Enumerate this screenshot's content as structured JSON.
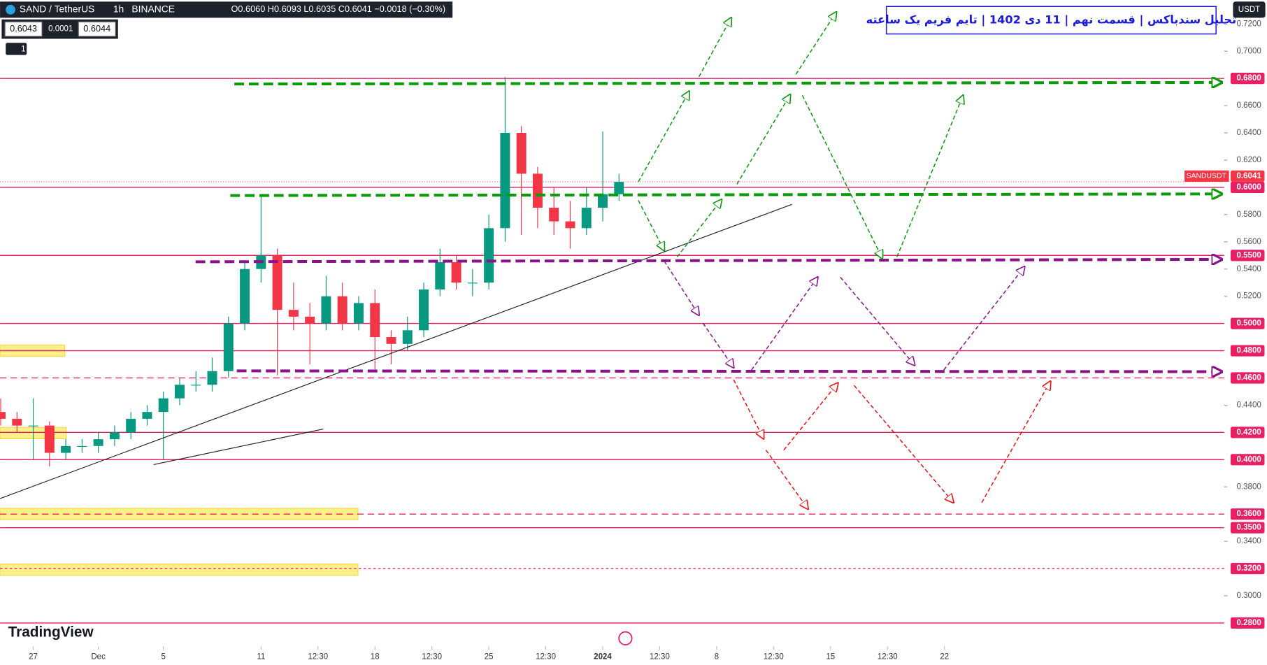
{
  "header": {
    "symbol": "SAND / TetherUS",
    "interval": "1h",
    "exchange": "BINANCE",
    "ohlc": "O0.6060 H0.6093 L0.6035 C0.6041 −0.0018 (−0.30%)",
    "bid": "0.6043",
    "spread": "0.0001",
    "ask": "0.6044",
    "indicators": "1"
  },
  "currency": "USDT",
  "brand": "TradingView",
  "chart_data": {
    "type": "candlestick",
    "title": "تحلیل سندباکس | قسمت نهم | 11 دی 1402 | تایم فریم یک ساعته",
    "x": [
      -2,
      -1,
      0,
      1,
      2,
      3,
      4,
      5,
      6,
      7,
      8,
      9,
      10,
      11,
      12,
      13,
      14,
      15,
      16,
      17,
      18,
      19,
      20,
      21,
      22,
      23,
      24,
      25,
      26,
      27,
      28,
      29,
      30,
      31,
      32,
      33,
      34,
      35,
      36
    ],
    "open": [
      0.435,
      0.43,
      0.425,
      0.425,
      0.405,
      0.41,
      0.41,
      0.415,
      0.42,
      0.43,
      0.435,
      0.445,
      0.455,
      0.455,
      0.465,
      0.5,
      0.54,
      0.55,
      0.51,
      0.505,
      0.5,
      0.52,
      0.5,
      0.515,
      0.49,
      0.485,
      0.495,
      0.525,
      0.545,
      0.53,
      0.53,
      0.57,
      0.64,
      0.61,
      0.585,
      0.575,
      0.57,
      0.585,
      0.595
    ],
    "high": [
      0.445,
      0.435,
      0.445,
      0.428,
      0.415,
      0.415,
      0.42,
      0.425,
      0.435,
      0.44,
      0.45,
      0.46,
      0.465,
      0.475,
      0.505,
      0.545,
      0.595,
      0.555,
      0.53,
      0.515,
      0.535,
      0.53,
      0.52,
      0.525,
      0.495,
      0.505,
      0.53,
      0.555,
      0.55,
      0.54,
      0.58,
      0.681,
      0.645,
      0.615,
      0.6,
      0.59,
      0.6,
      0.641,
      0.61
    ],
    "low": [
      0.425,
      0.42,
      0.4,
      0.395,
      0.4,
      0.405,
      0.405,
      0.41,
      0.415,
      0.425,
      0.4,
      0.44,
      0.45,
      0.45,
      0.46,
      0.495,
      0.53,
      0.462,
      0.495,
      0.47,
      0.495,
      0.495,
      0.495,
      0.465,
      0.47,
      0.48,
      0.49,
      0.52,
      0.525,
      0.52,
      0.525,
      0.56,
      0.565,
      0.57,
      0.565,
      0.555,
      0.565,
      0.575,
      0.59
    ],
    "close": [
      0.43,
      0.425,
      0.425,
      0.405,
      0.41,
      0.41,
      0.415,
      0.42,
      0.43,
      0.435,
      0.445,
      0.455,
      0.455,
      0.465,
      0.5,
      0.54,
      0.55,
      0.51,
      0.505,
      0.5,
      0.52,
      0.5,
      0.515,
      0.49,
      0.485,
      0.495,
      0.525,
      0.545,
      0.53,
      0.53,
      0.57,
      0.64,
      0.61,
      0.585,
      0.575,
      0.57,
      0.585,
      0.595,
      0.604
    ],
    "up_color": "#089981",
    "down_color": "#f23645",
    "xlim": [
      -2.04,
      73.19
    ],
    "xticks": [
      {
        "value": 0,
        "label": "27"
      },
      {
        "value": 4,
        "label": "Dec"
      },
      {
        "value": 8,
        "label": "5"
      },
      {
        "value": 14,
        "label": "11"
      },
      {
        "value": 17.5,
        "label": "12:30"
      },
      {
        "value": 21,
        "label": "18"
      },
      {
        "value": 24.5,
        "label": "12:30"
      },
      {
        "value": 28,
        "label": "25"
      },
      {
        "value": 31.5,
        "label": "12:30"
      },
      {
        "value": 35,
        "label": "2024"
      },
      {
        "value": 38.5,
        "label": "12:30"
      },
      {
        "value": 42,
        "label": "8"
      },
      {
        "value": 45.5,
        "label": "12:30"
      },
      {
        "value": 49,
        "label": "15"
      },
      {
        "value": 52.5,
        "label": "12:30"
      },
      {
        "value": 56,
        "label": "22"
      }
    ],
    "ylim": [
      0.2628,
      0.7376
    ],
    "yticks": [
      {
        "value": 0.72,
        "label": "0.7200"
      },
      {
        "value": 0.7,
        "label": "0.7000"
      },
      {
        "value": 0.66,
        "label": "0.6600"
      },
      {
        "value": 0.64,
        "label": "0.6400"
      },
      {
        "value": 0.62,
        "label": "0.6200"
      },
      {
        "value": 0.58,
        "label": "0.5800"
      },
      {
        "value": 0.56,
        "label": "0.5600"
      },
      {
        "value": 0.54,
        "label": "0.5400"
      },
      {
        "value": 0.52,
        "label": "0.5200"
      },
      {
        "value": 0.44,
        "label": "0.4400"
      },
      {
        "value": 0.38,
        "label": "0.3800"
      },
      {
        "value": 0.34,
        "label": "0.3400"
      },
      {
        "value": 0.3,
        "label": "0.3000"
      }
    ],
    "levels": [
      {
        "value": 0.68,
        "label": "0.6800",
        "style": "solid"
      },
      {
        "value": 0.6,
        "label": "0.6000",
        "style": "solid"
      },
      {
        "value": 0.55,
        "label": "0.5500",
        "style": "solid"
      },
      {
        "value": 0.5,
        "label": "0.5000",
        "style": "solid"
      },
      {
        "value": 0.48,
        "label": "0.4800",
        "style": "solid"
      },
      {
        "value": 0.46,
        "label": "0.4600",
        "style": "dashed"
      },
      {
        "value": 0.42,
        "label": "0.4200",
        "style": "solid"
      },
      {
        "value": 0.4,
        "label": "0.4000",
        "style": "solid"
      },
      {
        "value": 0.36,
        "label": "0.3600",
        "style": "dashed"
      },
      {
        "value": 0.35,
        "label": "0.3500",
        "style": "solid"
      },
      {
        "value": 0.32,
        "label": "0.3200",
        "style": "dotted"
      },
      {
        "value": 0.28,
        "label": "0.2800",
        "style": "solid"
      }
    ],
    "level_color": "#e91e63",
    "last_price": {
      "name": "SANDUSDT",
      "value": 0.6041,
      "label": "0.6041"
    }
  }
}
